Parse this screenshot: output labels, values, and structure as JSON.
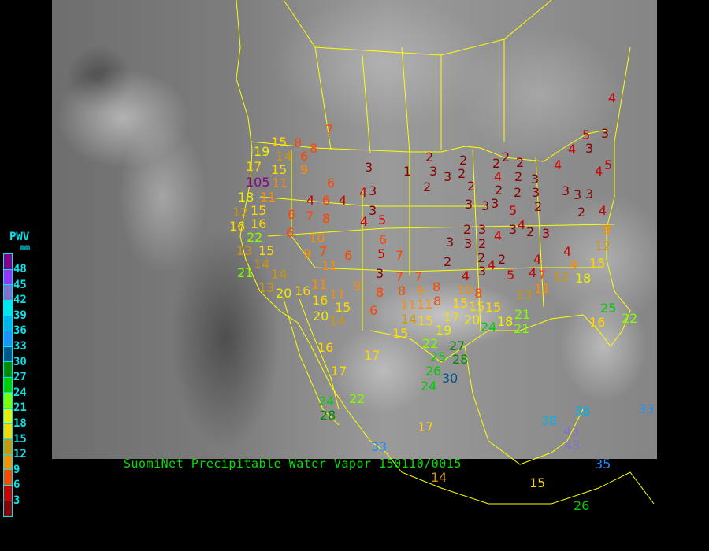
{
  "title": "SuomiNet Precipitable Water Vapor 150110/0015",
  "legend": {
    "title": "PWV",
    "unit": "mm",
    "labels": [
      "48",
      "45",
      "42",
      "39",
      "36",
      "33",
      "30",
      "27",
      "24",
      "21",
      "18",
      "15",
      "12",
      "9",
      "6",
      "3"
    ],
    "colors": [
      "#8b008b",
      "#9b30ff",
      "#8470d0",
      "#00e5ee",
      "#00b2ee",
      "#1e90ff",
      "#00578b",
      "#008b00",
      "#00cd00",
      "#7fff00",
      "#eeee00",
      "#ffd700",
      "#cd950c",
      "#ff8c00",
      "#ff4500",
      "#cd0000",
      "#8b0000"
    ]
  },
  "map_colors": {
    "boundaries": "#ffff00"
  },
  "stations": [
    {
      "value": "7"
    },
    {
      "value": "8"
    },
    {
      "value": "8"
    },
    {
      "value": "19"
    },
    {
      "value": "15"
    },
    {
      "value": "14"
    },
    {
      "value": "6"
    },
    {
      "value": "9"
    },
    {
      "value": "17"
    },
    {
      "value": "15"
    },
    {
      "value": "105"
    },
    {
      "value": "11"
    },
    {
      "value": "6"
    },
    {
      "value": "3"
    },
    {
      "value": "18"
    },
    {
      "value": "11"
    },
    {
      "value": "4"
    },
    {
      "value": "6"
    },
    {
      "value": "4"
    },
    {
      "value": "4"
    },
    {
      "value": "3"
    },
    {
      "value": "12"
    },
    {
      "value": "15"
    },
    {
      "value": "6"
    },
    {
      "value": "7"
    },
    {
      "value": "8"
    },
    {
      "value": "3"
    },
    {
      "value": "4"
    },
    {
      "value": "5"
    },
    {
      "value": "16"
    },
    {
      "value": "16"
    },
    {
      "value": "6"
    },
    {
      "value": "22"
    },
    {
      "value": "13"
    },
    {
      "value": "15"
    },
    {
      "value": "10"
    },
    {
      "value": "9"
    },
    {
      "value": "7"
    },
    {
      "value": "6"
    },
    {
      "value": "5"
    },
    {
      "value": "7"
    },
    {
      "value": "6"
    },
    {
      "value": "11"
    },
    {
      "value": "14"
    },
    {
      "value": "21"
    },
    {
      "value": "14"
    },
    {
      "value": "13"
    },
    {
      "value": "20"
    },
    {
      "value": "16"
    },
    {
      "value": "11"
    },
    {
      "value": "11"
    },
    {
      "value": "16"
    },
    {
      "value": "15"
    },
    {
      "value": "20"
    },
    {
      "value": "14"
    },
    {
      "value": "9"
    },
    {
      "value": "8"
    },
    {
      "value": "6"
    },
    {
      "value": "3"
    },
    {
      "value": "1"
    },
    {
      "value": "2"
    },
    {
      "value": "3"
    },
    {
      "value": "3"
    },
    {
      "value": "2"
    },
    {
      "value": "2"
    },
    {
      "value": "2"
    },
    {
      "value": "2"
    },
    {
      "value": "3"
    },
    {
      "value": "3"
    },
    {
      "value": "2"
    },
    {
      "value": "4"
    },
    {
      "value": "2"
    },
    {
      "value": "2"
    },
    {
      "value": "2"
    },
    {
      "value": "3"
    },
    {
      "value": "2"
    },
    {
      "value": "2"
    },
    {
      "value": "3"
    },
    {
      "value": "3"
    },
    {
      "value": "2"
    },
    {
      "value": "3"
    },
    {
      "value": "3"
    },
    {
      "value": "3"
    },
    {
      "value": "2"
    },
    {
      "value": "4"
    },
    {
      "value": "4"
    },
    {
      "value": "4"
    },
    {
      "value": "3"
    },
    {
      "value": "4"
    },
    {
      "value": "5"
    },
    {
      "value": "3"
    },
    {
      "value": "4"
    },
    {
      "value": "5"
    },
    {
      "value": "5"
    },
    {
      "value": "4"
    },
    {
      "value": "3"
    },
    {
      "value": "2"
    },
    {
      "value": "3"
    },
    {
      "value": "4"
    },
    {
      "value": "2"
    },
    {
      "value": "3"
    },
    {
      "value": "3"
    },
    {
      "value": "3"
    },
    {
      "value": "2"
    },
    {
      "value": "2"
    },
    {
      "value": "2"
    },
    {
      "value": "4"
    },
    {
      "value": "3"
    },
    {
      "value": "2"
    },
    {
      "value": "4"
    },
    {
      "value": "5"
    },
    {
      "value": "4"
    },
    {
      "value": "4"
    },
    {
      "value": "4"
    },
    {
      "value": "9"
    },
    {
      "value": "12"
    },
    {
      "value": "15"
    },
    {
      "value": "18"
    },
    {
      "value": "12"
    },
    {
      "value": "7"
    },
    {
      "value": "11"
    },
    {
      "value": "13"
    },
    {
      "value": "9"
    },
    {
      "value": "7"
    },
    {
      "value": "7"
    },
    {
      "value": "8"
    },
    {
      "value": "9"
    },
    {
      "value": "8"
    },
    {
      "value": "8"
    },
    {
      "value": "10"
    },
    {
      "value": "8"
    },
    {
      "value": "11"
    },
    {
      "value": "11"
    },
    {
      "value": "14"
    },
    {
      "value": "15"
    },
    {
      "value": "15"
    },
    {
      "value": "19"
    },
    {
      "value": "17"
    },
    {
      "value": "15"
    },
    {
      "value": "15"
    },
    {
      "value": "15"
    },
    {
      "value": "20"
    },
    {
      "value": "18"
    },
    {
      "value": "21"
    },
    {
      "value": "24"
    },
    {
      "value": "21"
    },
    {
      "value": "25"
    },
    {
      "value": "16"
    },
    {
      "value": "22"
    },
    {
      "value": "22"
    },
    {
      "value": "25"
    },
    {
      "value": "26"
    },
    {
      "value": "27"
    },
    {
      "value": "28"
    },
    {
      "value": "30"
    },
    {
      "value": "24"
    },
    {
      "value": "16"
    },
    {
      "value": "17"
    },
    {
      "value": "17"
    },
    {
      "value": "22"
    },
    {
      "value": "24"
    },
    {
      "value": "28"
    },
    {
      "value": "17"
    },
    {
      "value": "33"
    },
    {
      "value": "38"
    },
    {
      "value": "38"
    },
    {
      "value": "43"
    },
    {
      "value": "43"
    },
    {
      "value": "35"
    },
    {
      "value": "33"
    },
    {
      "value": "15"
    },
    {
      "value": "26"
    },
    {
      "value": "14"
    }
  ]
}
